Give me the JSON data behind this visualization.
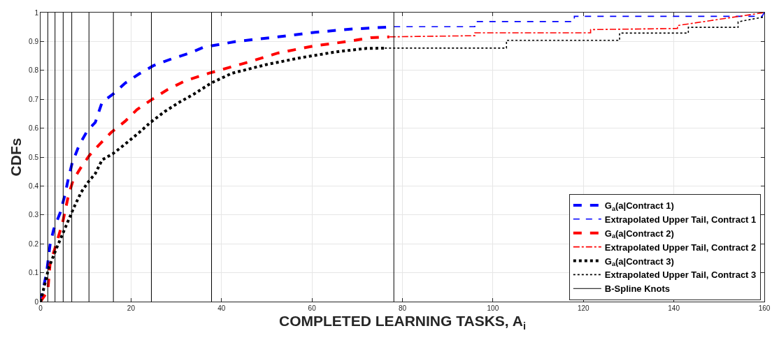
{
  "chart_data": {
    "type": "line",
    "xlabel": "COMPLETED LEARNING TASKS, A$_{i}$",
    "ylabel": "CDFs",
    "xlim": [
      0,
      160
    ],
    "xticks": [
      0,
      20,
      40,
      60,
      80,
      100,
      120,
      140,
      160
    ],
    "ylim": [
      0,
      1
    ],
    "yticks": [
      0,
      0.1,
      0.2,
      0.3,
      0.4,
      0.5,
      0.6,
      0.7,
      0.8,
      0.9,
      1
    ],
    "grid": true,
    "legend": "bottom right",
    "marker": "none",
    "series": [
      {
        "name": "G$_{a}$(a|Contract 1)",
        "color": "#0000ff",
        "line_style": "dashed",
        "x": [
          0,
          1.33,
          2.1,
          2.9,
          4.4,
          5.4,
          6.2,
          7.0,
          8.5,
          10.3,
          12.1,
          13.6,
          16.2,
          18.7,
          21.8,
          24.9,
          29,
          33,
          36,
          43.3,
          52.5,
          60.7,
          68.9,
          78.1
        ],
        "values": [
          0,
          0.1,
          0.196,
          0.25,
          0.31,
          0.37,
          0.43,
          0.48,
          0.54,
          0.59,
          0.62,
          0.69,
          0.72,
          0.756,
          0.788,
          0.816,
          0.84,
          0.86,
          0.88,
          0.9,
          0.916,
          0.932,
          0.943,
          0.951
        ]
      },
      {
        "name": "Extrapolated Upper Tail, Contract 1",
        "color": "#0000ff",
        "line_style": "dashed",
        "x": [
          78.1,
          96,
          96,
          118,
          118,
          159.5,
          160
        ],
        "values": [
          0.951,
          0.951,
          0.969,
          0.969,
          0.987,
          0.987,
          1
        ]
      },
      {
        "name": "G$_{a}$(a|Contract 2)",
        "color": "#ff0000",
        "line_style": "dashed",
        "x": [
          0,
          1.6,
          2.1,
          3.4,
          4.9,
          6.2,
          7.2,
          9.0,
          10.8,
          13.1,
          15.6,
          18.7,
          21.3,
          24.3,
          27.9,
          32,
          37.2,
          44.9,
          52.5,
          60.2,
          67.9,
          73,
          77.1
        ],
        "values": [
          0,
          0.037,
          0.13,
          0.196,
          0.275,
          0.37,
          0.42,
          0.466,
          0.506,
          0.545,
          0.585,
          0.624,
          0.664,
          0.696,
          0.732,
          0.764,
          0.79,
          0.824,
          0.86,
          0.884,
          0.9,
          0.913,
          0.916
        ]
      },
      {
        "name": "Extrapolated Upper Tail, Contract 2",
        "color": "#ff0000",
        "line_style": "dashdot",
        "x": [
          77.1,
          96,
          96,
          121.6,
          121.6,
          140.8,
          140.8,
          160
        ],
        "values": [
          0.916,
          0.92,
          0.93,
          0.93,
          0.941,
          0.945,
          0.955,
          1
        ]
      },
      {
        "name": "G$_{a}$(a|Contract 3)",
        "color": "#000000",
        "line_style": "dotted",
        "x": [
          0,
          1.8,
          3.4,
          4.9,
          6.2,
          7.5,
          9.0,
          10.6,
          12.1,
          13.6,
          16.2,
          18.7,
          21.8,
          24.3,
          27.4,
          30.5,
          34.1,
          37.7,
          42.3,
          49.9,
          57.6,
          65.3,
          72,
          76.1
        ],
        "values": [
          0,
          0.116,
          0.18,
          0.235,
          0.283,
          0.33,
          0.379,
          0.415,
          0.443,
          0.49,
          0.514,
          0.545,
          0.585,
          0.62,
          0.657,
          0.688,
          0.72,
          0.756,
          0.79,
          0.82,
          0.844,
          0.864,
          0.876,
          0.877
        ]
      },
      {
        "name": "Extrapolated Upper Tail, Contract 3",
        "color": "#000000",
        "line_style": "dotted",
        "x": [
          76.1,
          103,
          103,
          128,
          128,
          143.2,
          143.2,
          154.2,
          154.2,
          160
        ],
        "values": [
          0.877,
          0.877,
          0.904,
          0.904,
          0.929,
          0.929,
          0.949,
          0.949,
          0.968,
          0.985
        ]
      },
      {
        "name": "B-Spline Knots",
        "color": "#000000",
        "line_style": "solid",
        "x": [
          1.6,
          1.6,
          null,
          3.2,
          3.2,
          null,
          5.0,
          5.0,
          null,
          6.9,
          6.9,
          null,
          10.7,
          10.7,
          null,
          16.1,
          16.1,
          null,
          24.5,
          24.5,
          null,
          37.8,
          37.8,
          null,
          78.1,
          78.1
        ],
        "values": [
          0,
          1,
          null,
          0,
          1,
          null,
          0,
          1,
          null,
          0,
          1,
          null,
          0,
          1,
          null,
          0,
          1,
          null,
          0,
          1,
          null,
          0,
          1,
          null,
          0,
          1
        ]
      }
    ]
  }
}
